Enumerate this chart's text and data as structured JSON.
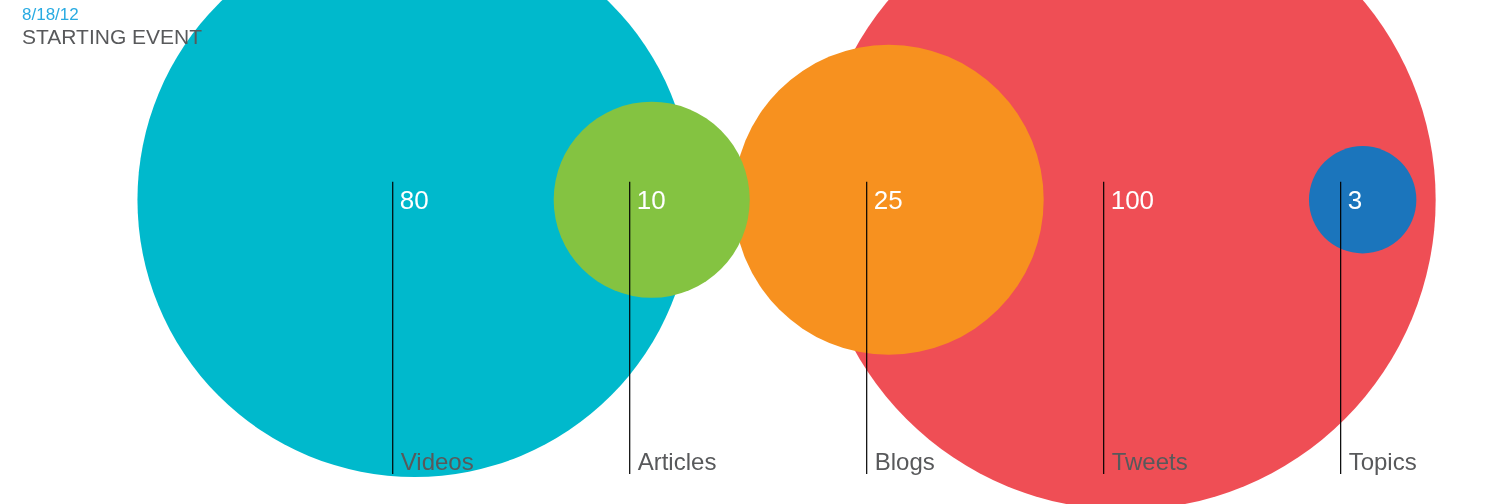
{
  "chart_data": {
    "type": "other",
    "title": "STARTING EVENT",
    "subtitle": "8/18/12",
    "categories": [
      "Videos",
      "Articles",
      "Blogs",
      "Tweets",
      "Topics"
    ],
    "values": [
      80,
      10,
      25,
      100,
      3
    ],
    "colors": [
      "#00b9cc",
      "#84c341",
      "#f7911f",
      "#ef4e55",
      "#1b75bc"
    ],
    "data_labels": true
  }
}
